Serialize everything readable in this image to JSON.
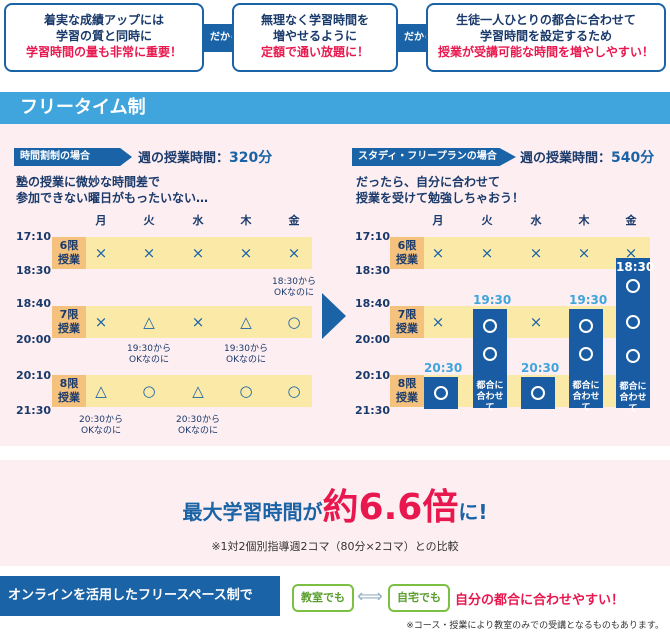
{
  "top": {
    "box1": {
      "line1": "着実な成績アップには",
      "line2": "学習の質と同時に",
      "line3": "学習時間の量も非常に重要！"
    },
    "arrow1": "だから",
    "box2": {
      "line1": "無理なく学習時間を",
      "line2": "増やせるように",
      "line3": "定額で通い放題に！"
    },
    "arrow2": "だから",
    "box3": {
      "line1": "生徒一人ひとりの都合に合わせて",
      "line2": "学習時間を設定するため",
      "line3": "授業が受講可能な時間を増やしやすい！"
    }
  },
  "band_title": "フリータイム制",
  "left": {
    "tag": "時間割制の場合",
    "hours_label": "週の授業時間：",
    "hours_value": "320分",
    "desc1": "塾の授業に微妙な時間差で",
    "desc2": "参加できない曜日がもったいない…",
    "days": [
      "月",
      "火",
      "水",
      "木",
      "金"
    ],
    "rows": [
      {
        "period": "6限",
        "sub": "授業",
        "start": "17:10",
        "end": "18:30",
        "marks": [
          "×",
          "×",
          "×",
          "×",
          "×"
        ]
      },
      {
        "period": "7限",
        "sub": "授業",
        "start": "18:40",
        "end": "20:00",
        "marks": [
          "×",
          "△",
          "×",
          "△",
          "○"
        ]
      },
      {
        "period": "8限",
        "sub": "授業",
        "start": "20:10",
        "end": "21:30",
        "marks": [
          "△",
          "○",
          "△",
          "○",
          "○"
        ]
      }
    ],
    "notes": {
      "fri_7": [
        "18:30から",
        "OKなのに"
      ],
      "tue_7": [
        "19:30から",
        "OKなのに"
      ],
      "thu_7": [
        "19:30から",
        "OKなのに"
      ],
      "mon_8": [
        "20:30から",
        "OKなのに"
      ],
      "wed_8": [
        "20:30から",
        "OKなのに"
      ]
    }
  },
  "right": {
    "tag": "スタディ・フリープランの場合",
    "hours_label": "週の授業時間：",
    "hours_value": "540分",
    "desc1": "だったら、自分に合わせて",
    "desc2": "授業を受けて勉強しちゃおう！",
    "days": [
      "月",
      "火",
      "水",
      "木",
      "金"
    ],
    "rows": [
      {
        "period": "6限",
        "sub": "授業",
        "start": "17:10",
        "end": "18:30",
        "marks": [
          "×",
          "×",
          "×",
          "×",
          "×"
        ]
      },
      {
        "period": "7限",
        "sub": "授業",
        "start": "18:40",
        "end": "20:00",
        "marks": [
          "×",
          "",
          "×",
          "",
          ""
        ]
      },
      {
        "period": "8限",
        "sub": "授業",
        "start": "20:10",
        "end": "21:30",
        "marks": [
          "",
          "",
          "",
          "",
          ""
        ]
      }
    ],
    "bars": [
      {
        "day": "月",
        "start": "20:30",
        "adjust": ""
      },
      {
        "day": "火",
        "start": "19:30",
        "adjust": "都合に合わせて"
      },
      {
        "day": "水",
        "start": "20:30",
        "adjust": ""
      },
      {
        "day": "木",
        "start": "19:30",
        "adjust": "都合に合わせて"
      },
      {
        "day": "金",
        "start": "18:30",
        "adjust": "都合に合わせて"
      }
    ]
  },
  "result": {
    "prefix": "最大学習時間が",
    "big": "約6.6倍",
    "suffix": "に!",
    "footnote": "※1対2個別指導週2コマ（80分×2コマ）との比較"
  },
  "bottom": {
    "banner": "オンラインを活用したフリースペース制で",
    "place1": "教室でも",
    "place2": "自宅でも",
    "tagline": "自分の都合に合わせやすい！",
    "footnote": "※コース・授業により教室のみでの受講となるものもあります。"
  }
}
